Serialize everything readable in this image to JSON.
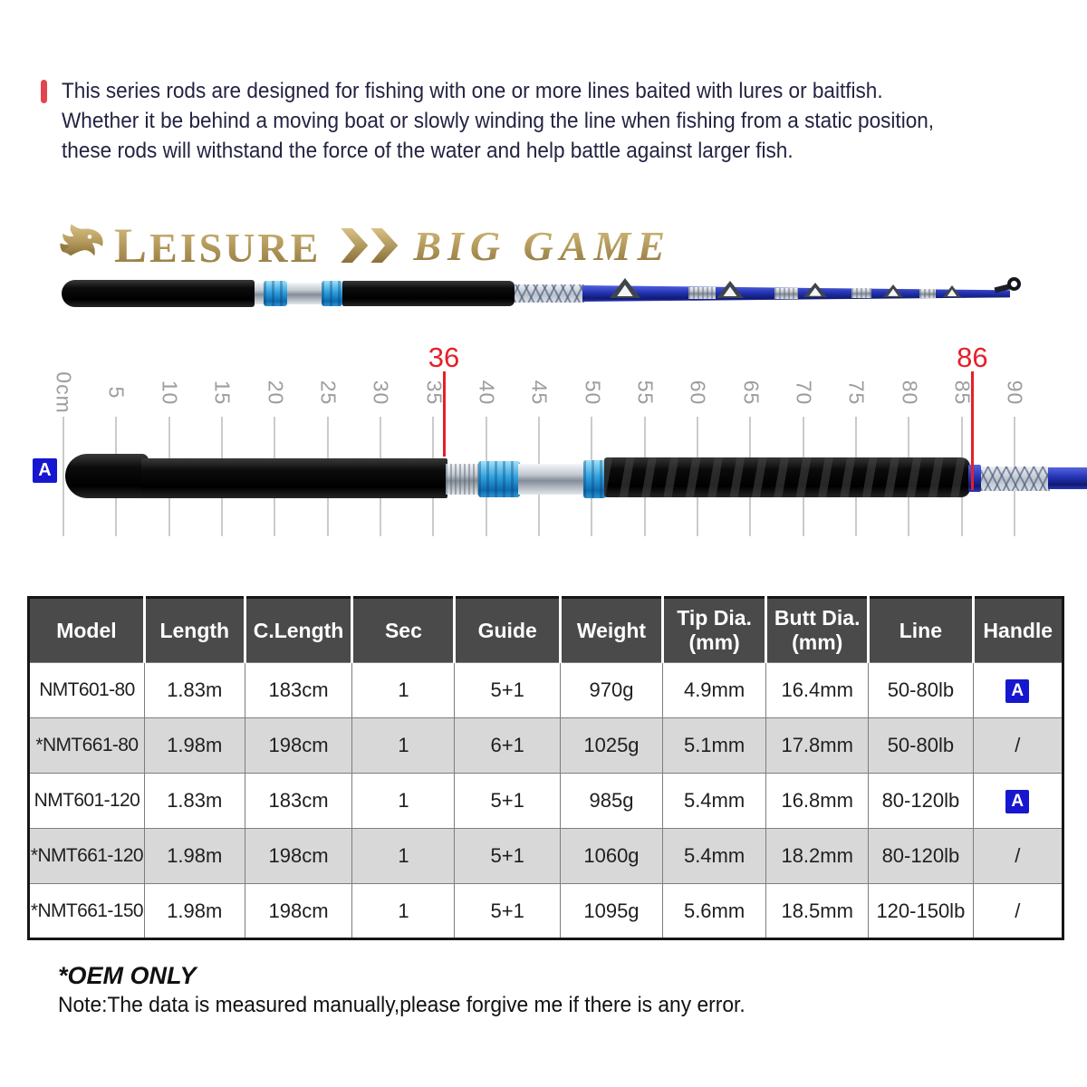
{
  "colors": {
    "accent_red": "#e61f28",
    "intro_bar_red": "#e2454e",
    "brand_gold": "#b89e60",
    "badge_blue": "#1717d0",
    "table_header_gray": "#4a4a4a",
    "table_alt_row": "#d8d8d8",
    "intro_text_navy": "#232342",
    "ruler_gray": "#9d9d9d"
  },
  "intro": {
    "lines": [
      "This series rods are designed for fishing with one or more lines baited with lures or baitfish.",
      "Whether it be behind a moving boat or slowly winding the line when fishing from a static position,",
      "these rods will withstand the force of the water and help battle against larger fish."
    ]
  },
  "logo": {
    "brand": "LEISURE",
    "series": "BIG GAME"
  },
  "ruler": {
    "unit": "cm",
    "ticks": [
      "0cm",
      "5",
      "10",
      "15",
      "20",
      "25",
      "30",
      "35",
      "40",
      "45",
      "50",
      "55",
      "60",
      "65",
      "70",
      "75",
      "80",
      "85",
      "90"
    ],
    "markers": [
      {
        "label": "36",
        "cm": 36
      },
      {
        "label": "86",
        "cm": 86
      }
    ],
    "handle_badge": "A"
  },
  "table": {
    "headers": [
      {
        "lines": [
          "Model"
        ]
      },
      {
        "lines": [
          "Length"
        ]
      },
      {
        "lines": [
          "C.Length"
        ]
      },
      {
        "lines": [
          "Sec"
        ]
      },
      {
        "lines": [
          "Guide"
        ]
      },
      {
        "lines": [
          "Weight"
        ]
      },
      {
        "lines": [
          "Tip Dia.",
          "(mm)"
        ]
      },
      {
        "lines": [
          "Butt Dia.",
          "(mm)"
        ]
      },
      {
        "lines": [
          "Line"
        ]
      },
      {
        "lines": [
          "Handle"
        ]
      }
    ],
    "rows": [
      {
        "model": "NMT601-80",
        "length": "1.83m",
        "c_length": "183cm",
        "sec": "1",
        "guide": "5+1",
        "weight": "970g",
        "tip_dia": "4.9mm",
        "butt_dia": "16.4mm",
        "line": "50-80lb",
        "handle": "A",
        "handle_is_badge": true
      },
      {
        "model": "*NMT661-80",
        "length": "1.98m",
        "c_length": "198cm",
        "sec": "1",
        "guide": "6+1",
        "weight": "1025g",
        "tip_dia": "5.1mm",
        "butt_dia": "17.8mm",
        "line": "50-80lb",
        "handle": "/",
        "handle_is_badge": false
      },
      {
        "model": "NMT601-120",
        "length": "1.83m",
        "c_length": "183cm",
        "sec": "1",
        "guide": "5+1",
        "weight": "985g",
        "tip_dia": "5.4mm",
        "butt_dia": "16.8mm",
        "line": "80-120lb",
        "handle": "A",
        "handle_is_badge": true
      },
      {
        "model": "*NMT661-120",
        "length": "1.98m",
        "c_length": "198cm",
        "sec": "1",
        "guide": "5+1",
        "weight": "1060g",
        "tip_dia": "5.4mm",
        "butt_dia": "18.2mm",
        "line": "80-120lb",
        "handle": "/",
        "handle_is_badge": false
      },
      {
        "model": "*NMT661-150",
        "length": "1.98m",
        "c_length": "198cm",
        "sec": "1",
        "guide": "5+1",
        "weight": "1095g",
        "tip_dia": "5.6mm",
        "butt_dia": "18.5mm",
        "line": "120-150lb",
        "handle": "/",
        "handle_is_badge": false
      }
    ]
  },
  "footer": {
    "oem": "*OEM ONLY",
    "note": "Note:The data is measured manually,please forgive me if there is any error."
  }
}
